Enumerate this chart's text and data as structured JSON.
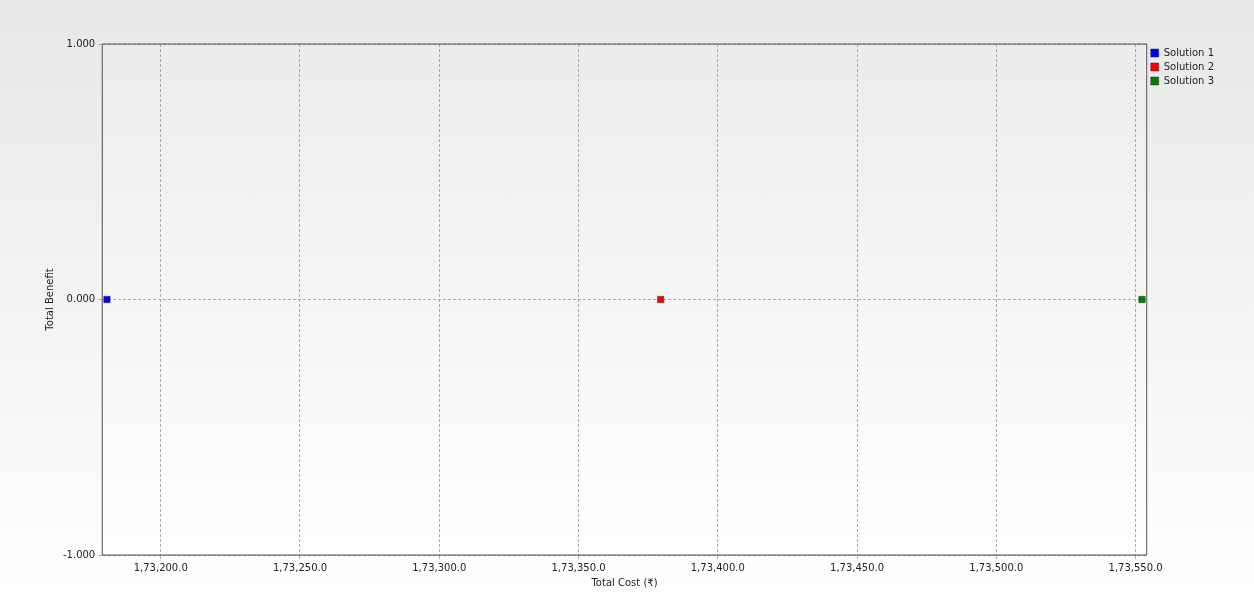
{
  "chart_data": {
    "type": "scatter",
    "xlabel": "Total Cost (₹)",
    "ylabel": "Total Benefit",
    "xlim": [
      173179,
      173554
    ],
    "ylim": [
      -1,
      1
    ],
    "xticks": [
      {
        "value": 173200,
        "label": "1,73,200.0"
      },
      {
        "value": 173250,
        "label": "1,73,250.0"
      },
      {
        "value": 173300,
        "label": "1,73,300.0"
      },
      {
        "value": 173350,
        "label": "1,73,350.0"
      },
      {
        "value": 173400,
        "label": "1,73,400.0"
      },
      {
        "value": 173450,
        "label": "1,73,450.0"
      },
      {
        "value": 173500,
        "label": "1,73,500.0"
      },
      {
        "value": 173550,
        "label": "1,73,550.0"
      }
    ],
    "yticks": [
      {
        "value": -1,
        "label": "-1.000"
      },
      {
        "value": 0,
        "label": "0.000"
      },
      {
        "value": 1,
        "label": "1.000"
      }
    ],
    "grid": true,
    "legend": "top right",
    "marker": "square",
    "series": [
      {
        "name": "Solution 1",
        "color": "#0000ff",
        "x": [
          173180.7
        ],
        "values": [
          0
        ]
      },
      {
        "name": "Solution 2",
        "color": "#ff0000",
        "x": [
          173379.5
        ],
        "values": [
          0
        ]
      },
      {
        "name": "Solution 3",
        "color": "#008000",
        "x": [
          173552.3
        ],
        "values": [
          0
        ]
      }
    ]
  }
}
